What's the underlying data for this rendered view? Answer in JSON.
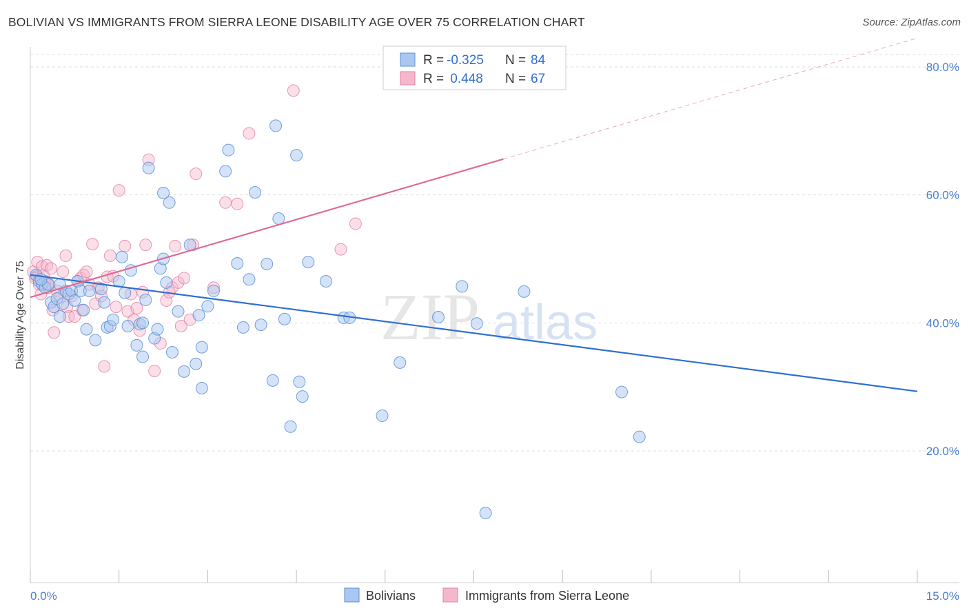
{
  "header": {
    "title": "BOLIVIAN VS IMMIGRANTS FROM SIERRA LEONE DISABILITY AGE OVER 75 CORRELATION CHART",
    "source": "Source: ZipAtlas.com"
  },
  "watermark": {
    "part1": "ZIP",
    "part2": "atlas"
  },
  "legend_box": {
    "row1": {
      "r_label": "R = ",
      "r_value": "-0.325",
      "n_label": "N = ",
      "n_value": "84"
    },
    "row2": {
      "r_label": "R = ",
      "r_value": " 0.448",
      "n_label": "N = ",
      "n_value": "67"
    }
  },
  "colors": {
    "blue_fill": "#a9c7f0",
    "blue_stroke": "#5b8fd6",
    "blue_line": "#2f6fd0",
    "pink_fill": "#f5b8cb",
    "pink_stroke": "#e27fa0",
    "pink_line": "#e06a92",
    "tick_label": "#4a7fd0",
    "grid": "#dddddd"
  },
  "chart_data": {
    "type": "scatter",
    "title": "BOLIVIAN VS IMMIGRANTS FROM SIERRA LEONE DISABILITY AGE OVER 75 CORRELATION CHART",
    "xlabel": "",
    "ylabel": "Disability Age Over 75",
    "xlim": [
      0,
      15
    ],
    "ylim": [
      0,
      85
    ],
    "x_tick_labels": [
      "0.0%",
      "15.0%"
    ],
    "y_ticks": [
      20,
      40,
      60,
      80
    ],
    "y_tick_labels": [
      "20.0%",
      "40.0%",
      "60.0%",
      "80.0%"
    ],
    "grid": true,
    "legend_position": "bottom-center",
    "series": [
      {
        "name": "Bolivians",
        "color": "#5b8fd6",
        "r": -0.325,
        "n": 84,
        "trend": {
          "x0": 0.0,
          "y0": 47.5,
          "x1": 15.0,
          "y1": 29.3
        },
        "points": [
          [
            0.1,
            47.5
          ],
          [
            0.15,
            46.5
          ],
          [
            0.2,
            46.0
          ],
          [
            0.25,
            45.5
          ],
          [
            0.3,
            46.0
          ],
          [
            0.35,
            43.2
          ],
          [
            0.4,
            42.5
          ],
          [
            0.45,
            43.8
          ],
          [
            0.5,
            41.0
          ],
          [
            0.55,
            43.0
          ],
          [
            0.6,
            45.0
          ],
          [
            0.65,
            44.5
          ],
          [
            0.7,
            45.0
          ],
          [
            0.75,
            43.5
          ],
          [
            0.8,
            46.5
          ],
          [
            0.85,
            45.0
          ],
          [
            0.9,
            42.0
          ],
          [
            0.95,
            39.0
          ],
          [
            1.0,
            45.0
          ],
          [
            1.1,
            37.3
          ],
          [
            1.2,
            45.3
          ],
          [
            1.25,
            43.2
          ],
          [
            1.3,
            39.3
          ],
          [
            1.35,
            39.5
          ],
          [
            1.4,
            40.5
          ],
          [
            1.5,
            46.5
          ],
          [
            1.55,
            50.3
          ],
          [
            1.6,
            44.7
          ],
          [
            1.65,
            39.5
          ],
          [
            1.7,
            48.2
          ],
          [
            1.8,
            36.5
          ],
          [
            1.85,
            39.8
          ],
          [
            1.9,
            40.0
          ],
          [
            1.95,
            43.6
          ],
          [
            2.0,
            64.2
          ],
          [
            2.1,
            37.6
          ],
          [
            2.15,
            39.0
          ],
          [
            2.2,
            48.5
          ],
          [
            2.25,
            50.0
          ],
          [
            2.3,
            46.3
          ],
          [
            2.35,
            58.8
          ],
          [
            2.4,
            35.4
          ],
          [
            2.5,
            41.8
          ],
          [
            2.6,
            32.4
          ],
          [
            2.7,
            52.2
          ],
          [
            2.8,
            33.6
          ],
          [
            2.85,
            41.2
          ],
          [
            2.9,
            36.2
          ],
          [
            3.0,
            42.6
          ],
          [
            3.1,
            45.0
          ],
          [
            3.3,
            63.7
          ],
          [
            3.35,
            67.0
          ],
          [
            3.5,
            49.3
          ],
          [
            3.6,
            39.3
          ],
          [
            3.7,
            46.8
          ],
          [
            3.8,
            60.4
          ],
          [
            3.9,
            39.7
          ],
          [
            4.0,
            49.2
          ],
          [
            4.1,
            31.0
          ],
          [
            4.2,
            56.3
          ],
          [
            4.3,
            40.6
          ],
          [
            4.4,
            23.8
          ],
          [
            4.5,
            66.2
          ],
          [
            4.55,
            30.8
          ],
          [
            4.6,
            28.5
          ],
          [
            4.7,
            49.5
          ],
          [
            5.0,
            46.5
          ],
          [
            5.3,
            40.8
          ],
          [
            5.4,
            40.8
          ],
          [
            5.95,
            25.5
          ],
          [
            6.25,
            33.8
          ],
          [
            6.9,
            40.9
          ],
          [
            7.3,
            45.7
          ],
          [
            7.55,
            39.9
          ],
          [
            7.7,
            10.3
          ],
          [
            8.35,
            44.9
          ],
          [
            10.0,
            29.2
          ],
          [
            10.3,
            22.2
          ],
          [
            4.15,
            70.8
          ],
          [
            0.5,
            46.0
          ],
          [
            2.25,
            60.3
          ],
          [
            2.9,
            29.8
          ],
          [
            0.18,
            46.8
          ],
          [
            1.9,
            34.7
          ]
        ]
      },
      {
        "name": "Immigrants from Sierra Leone",
        "color": "#e27fa0",
        "r": 0.448,
        "n": 67,
        "trend": {
          "x0": 0.0,
          "y0": 44.0,
          "x1": 8.0,
          "y1": 65.6,
          "dashed_to": {
            "x": 15.0,
            "y": 84.5
          }
        },
        "points": [
          [
            0.05,
            48.0
          ],
          [
            0.1,
            47.2
          ],
          [
            0.12,
            49.5
          ],
          [
            0.15,
            46.0
          ],
          [
            0.18,
            44.5
          ],
          [
            0.2,
            48.8
          ],
          [
            0.22,
            47.5
          ],
          [
            0.25,
            46.5
          ],
          [
            0.28,
            49.0
          ],
          [
            0.3,
            45.5
          ],
          [
            0.35,
            48.5
          ],
          [
            0.38,
            42.0
          ],
          [
            0.4,
            38.5
          ],
          [
            0.45,
            45.0
          ],
          [
            0.5,
            44.0
          ],
          [
            0.55,
            48.0
          ],
          [
            0.6,
            50.5
          ],
          [
            0.62,
            42.5
          ],
          [
            0.65,
            41.0
          ],
          [
            0.7,
            44.2
          ],
          [
            0.75,
            41.0
          ],
          [
            0.8,
            46.5
          ],
          [
            0.85,
            47.0
          ],
          [
            0.88,
            42.0
          ],
          [
            0.9,
            47.5
          ],
          [
            0.95,
            48.0
          ],
          [
            1.0,
            46.0
          ],
          [
            1.05,
            52.3
          ],
          [
            1.1,
            43.0
          ],
          [
            1.15,
            45.5
          ],
          [
            1.2,
            44.2
          ],
          [
            1.25,
            33.2
          ],
          [
            1.3,
            47.2
          ],
          [
            1.35,
            50.5
          ],
          [
            1.4,
            47.3
          ],
          [
            1.5,
            60.7
          ],
          [
            1.6,
            52.0
          ],
          [
            1.65,
            41.8
          ],
          [
            1.7,
            44.5
          ],
          [
            1.75,
            40.5
          ],
          [
            1.8,
            42.3
          ],
          [
            1.85,
            38.8
          ],
          [
            1.9,
            44.8
          ],
          [
            1.95,
            52.2
          ],
          [
            2.0,
            65.5
          ],
          [
            2.1,
            32.5
          ],
          [
            2.2,
            36.8
          ],
          [
            2.3,
            43.5
          ],
          [
            2.4,
            45.5
          ],
          [
            2.45,
            52.0
          ],
          [
            2.5,
            46.3
          ],
          [
            2.55,
            39.5
          ],
          [
            2.6,
            47.0
          ],
          [
            2.7,
            40.5
          ],
          [
            2.75,
            52.2
          ],
          [
            2.8,
            63.3
          ],
          [
            3.1,
            45.5
          ],
          [
            3.3,
            58.8
          ],
          [
            3.5,
            58.6
          ],
          [
            3.7,
            69.6
          ],
          [
            4.45,
            76.3
          ],
          [
            5.25,
            51.5
          ],
          [
            5.5,
            55.5
          ],
          [
            0.08,
            47.0
          ],
          [
            1.45,
            42.5
          ],
          [
            2.35,
            44.8
          ],
          [
            0.32,
            46.0
          ]
        ]
      }
    ]
  }
}
